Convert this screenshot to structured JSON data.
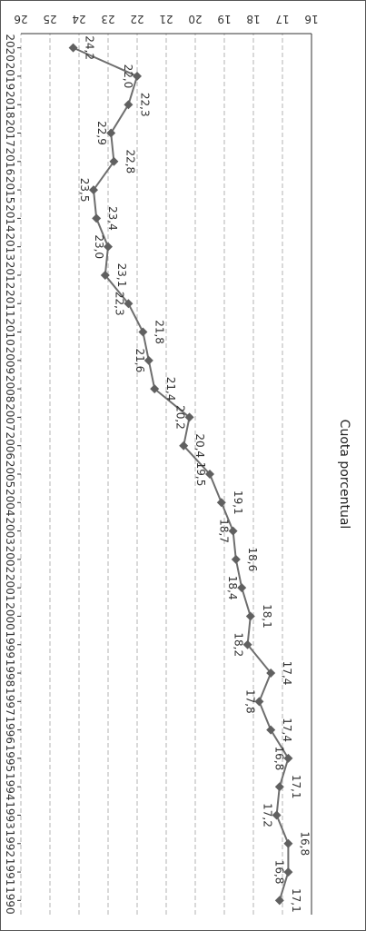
{
  "chart_data": {
    "type": "line",
    "ylabel": "Cuota porcentual",
    "xlabel": "",
    "title": "",
    "ylim": [
      16,
      26
    ],
    "y_ticks": [
      16,
      17,
      18,
      19,
      20,
      21,
      22,
      23,
      24,
      25,
      26
    ],
    "grid": true,
    "orientation": "rotated 180°",
    "colors": {
      "line": "#6e6e6e",
      "marker": "#606060",
      "grid": "#b3b3b3",
      "axis": "#333333"
    },
    "categories": [
      "1990",
      "1991",
      "1992",
      "1993",
      "1994",
      "1995",
      "1996",
      "1997",
      "1998",
      "1999",
      "2000",
      "2001",
      "2002",
      "2003",
      "2004",
      "2005",
      "2006",
      "2007",
      "2008",
      "2009",
      "2010",
      "2011",
      "2012",
      "2013",
      "2014",
      "2015",
      "2016",
      "2017",
      "2018",
      "2019",
      "2020"
    ],
    "series": [
      {
        "values": [
          17.1,
          16.8,
          16.8,
          17.2,
          17.1,
          16.8,
          17.4,
          17.8,
          17.4,
          18.2,
          18.1,
          18.4,
          18.6,
          18.7,
          19.1,
          19.5,
          20.4,
          20.2,
          21.4,
          21.6,
          21.8,
          22.3,
          23.1,
          23.0,
          23.4,
          23.5,
          22.8,
          22.9,
          22.3,
          22.0,
          24.2
        ],
        "labels": [
          "17,1",
          "16,8",
          "16,8",
          "17,2",
          "17,1",
          "16,8",
          "17,4",
          "17,8",
          "17,4",
          "18,2",
          "18,1",
          "18,4",
          "18,6",
          "18,7",
          "19,1",
          "19,5",
          "20,4",
          "20,2",
          "21,4",
          "21,6",
          "21,8",
          "22,3",
          "23,1",
          "23,0",
          "23,4",
          "23,5",
          "22,8",
          "22,9",
          "22,3",
          "22,0",
          "24,2"
        ]
      }
    ]
  }
}
